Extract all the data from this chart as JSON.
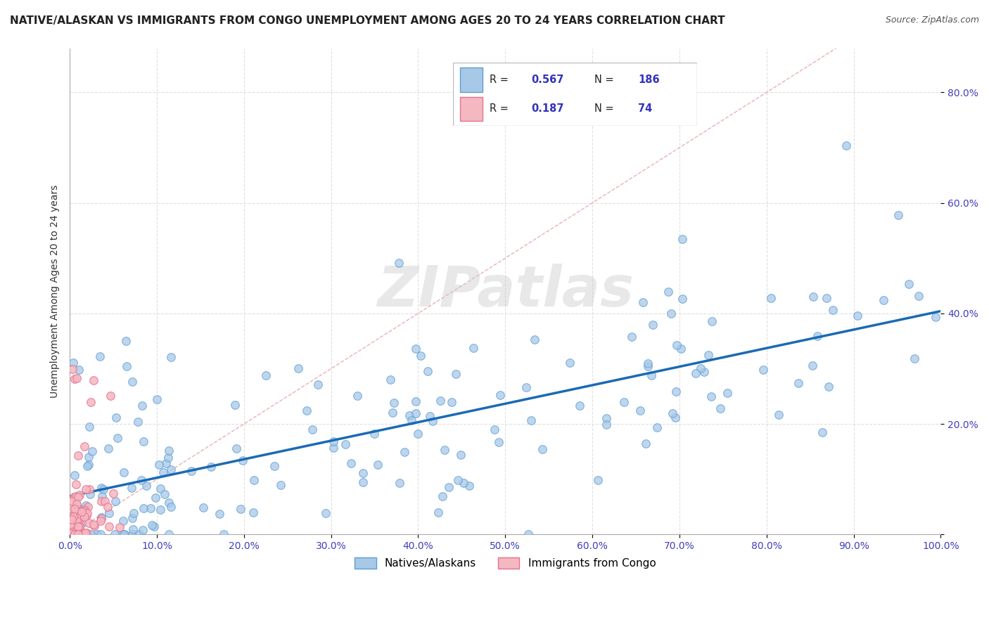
{
  "title": "NATIVE/ALASKAN VS IMMIGRANTS FROM CONGO UNEMPLOYMENT AMONG AGES 20 TO 24 YEARS CORRELATION CHART",
  "source": "Source: ZipAtlas.com",
  "xlabel": "",
  "ylabel": "Unemployment Among Ages 20 to 24 years",
  "xlim": [
    0,
    1.0
  ],
  "ylim": [
    0,
    0.88
  ],
  "xticks": [
    0.0,
    0.1,
    0.2,
    0.3,
    0.4,
    0.5,
    0.6,
    0.7,
    0.8,
    0.9,
    1.0
  ],
  "yticks": [
    0.0,
    0.2,
    0.4,
    0.6,
    0.8
  ],
  "xticklabels": [
    "0.0%",
    "10.0%",
    "20.0%",
    "30.0%",
    "40.0%",
    "50.0%",
    "60.0%",
    "70.0%",
    "80.0%",
    "90.0%",
    "100.0%"
  ],
  "yticklabels": [
    "",
    "20.0%",
    "40.0%",
    "60.0%",
    "80.0%"
  ],
  "blue_color": "#a8c8e8",
  "blue_edge_color": "#5a9fd4",
  "pink_color": "#f4b8c0",
  "pink_edge_color": "#e87090",
  "blue_line_color": "#1a6ab5",
  "diag_line_color": "#e09090",
  "R_blue": 0.567,
  "N_blue": 186,
  "R_pink": 0.187,
  "N_pink": 74,
  "watermark": "ZIPatlas",
  "legend_label_blue": "Natives/Alaskans",
  "legend_label_pink": "Immigrants from Congo",
  "blue_seed": 42,
  "pink_seed": 7,
  "background_color": "#ffffff",
  "grid_color": "#dddddd",
  "title_color": "#222222",
  "axis_label_color": "#333333",
  "tick_label_color": "#4040bb",
  "stat_label_color": "#3333bb"
}
